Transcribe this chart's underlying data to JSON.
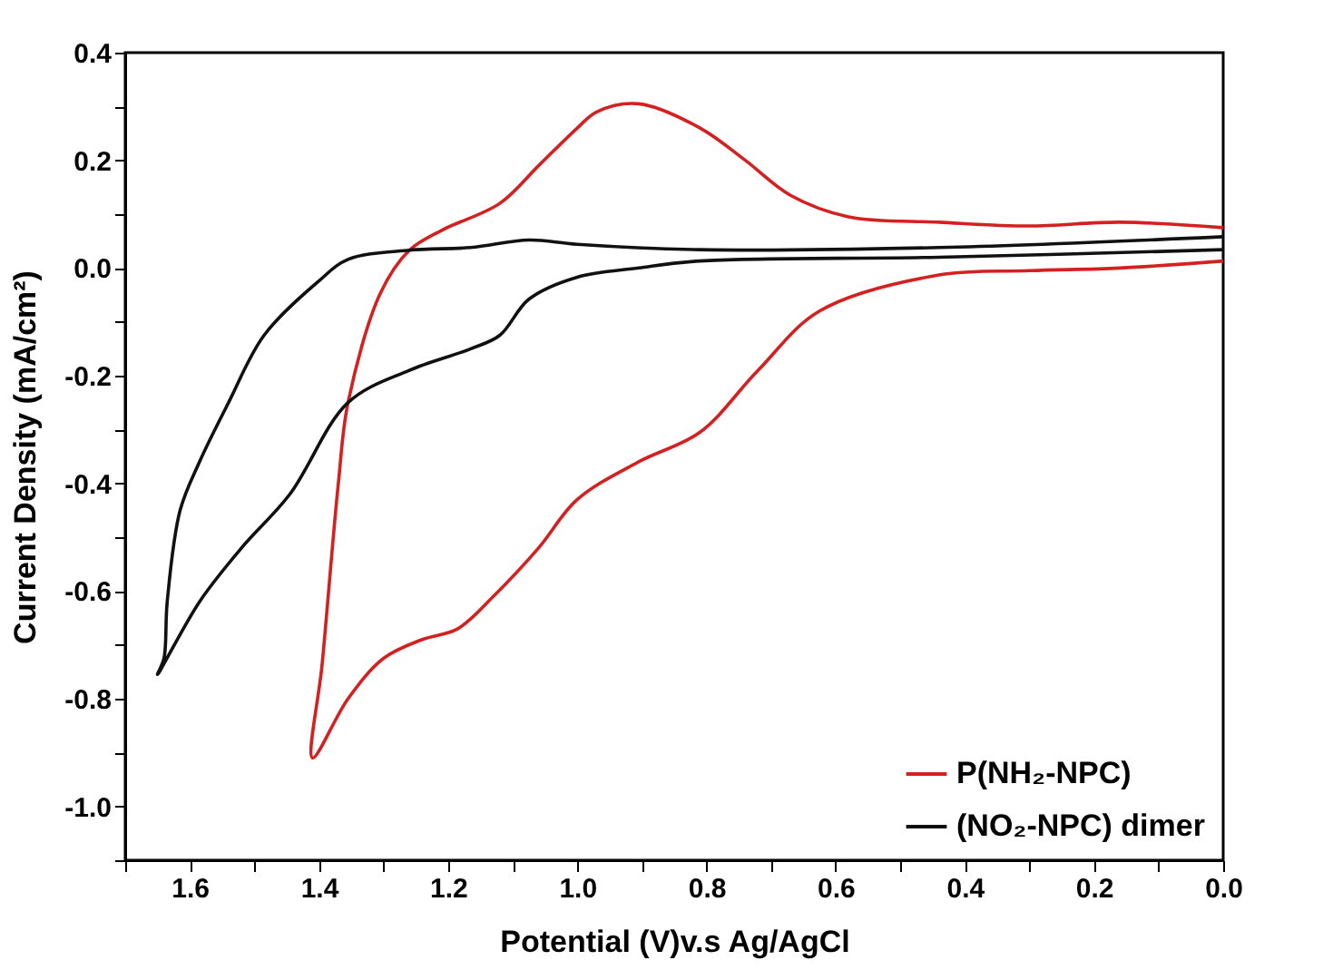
{
  "chart_data": {
    "type": "line",
    "xlabel": "Potential (V)v.s Ag/AgCl",
    "ylabel": "Current Density (mA/cm²)",
    "xlim": [
      1.7,
      0.0
    ],
    "ylim": [
      -1.1,
      0.4
    ],
    "xticks": [
      {
        "value": 1.7,
        "label": null
      },
      1.6,
      {
        "value": 1.5,
        "label": null
      },
      1.4,
      {
        "value": 1.3,
        "label": null
      },
      1.2,
      {
        "value": 1.1,
        "label": null
      },
      {
        "value": 1.0,
        "label": "1.0"
      },
      {
        "value": 0.9,
        "label": null
      },
      0.8,
      {
        "value": 0.7,
        "label": null
      },
      0.6,
      {
        "value": 0.5,
        "label": null
      },
      0.4,
      {
        "value": 0.3,
        "label": null
      },
      0.2,
      {
        "value": 0.1,
        "label": null
      },
      {
        "value": 0,
        "label": "0.0"
      }
    ],
    "yticks": [
      0.4,
      {
        "value": 0.3,
        "label": null
      },
      0.2,
      {
        "value": 0.1,
        "label": null
      },
      {
        "value": 0,
        "label": "0.0"
      },
      {
        "value": -0.1,
        "label": null
      },
      -0.2,
      {
        "value": -0.3,
        "label": null
      },
      -0.4,
      {
        "value": -0.5,
        "label": null
      },
      -0.6,
      {
        "value": -0.7,
        "label": null
      },
      -0.8,
      {
        "value": -0.9,
        "label": null
      },
      {
        "value": -1.0,
        "label": "-1.0"
      },
      {
        "value": -1.1,
        "label": null
      }
    ],
    "grid": false,
    "legend": "bottom right",
    "line_style": "solid",
    "marker": "none",
    "series": [
      {
        "name": "P(NH₂-NPC)",
        "color": "#d42020",
        "x": [
          0.0,
          0.16,
          0.3,
          0.44,
          0.58,
          0.67,
          0.74,
          0.81,
          0.905,
          0.97,
          1.0,
          1.06,
          1.12,
          1.21,
          1.26,
          1.305,
          1.355,
          1.37,
          1.395,
          1.41,
          1.355,
          1.3,
          1.24,
          1.185,
          1.13,
          1.06,
          1.0,
          0.905,
          0.81,
          0.72,
          0.625,
          0.44,
          0.3,
          0.16,
          0.0
        ],
        "values": [
          0.075,
          0.085,
          0.078,
          0.085,
          0.095,
          0.135,
          0.2,
          0.26,
          0.305,
          0.29,
          0.26,
          0.19,
          0.12,
          0.07,
          0.033,
          -0.047,
          -0.25,
          -0.4,
          -0.735,
          -0.91,
          -0.8,
          -0.725,
          -0.69,
          -0.67,
          -0.61,
          -0.52,
          -0.43,
          -0.36,
          -0.305,
          -0.19,
          -0.08,
          -0.013,
          -0.005,
          0.0,
          0.013
        ]
      },
      {
        "name": "(NO₂-NPC) dimer",
        "color": "#111111",
        "x": [
          0.0,
          0.44,
          0.81,
          1.0,
          1.075,
          1.165,
          1.26,
          1.355,
          1.4,
          1.485,
          1.54,
          1.585,
          1.615,
          1.635,
          1.64,
          1.65,
          1.585,
          1.52,
          1.445,
          1.355,
          1.26,
          1.165,
          1.12,
          1.075,
          1.0,
          0.905,
          0.81,
          0.44,
          0.0
        ],
        "values": [
          0.058,
          0.038,
          0.034,
          0.044,
          0.052,
          0.038,
          0.033,
          0.016,
          -0.024,
          -0.125,
          -0.25,
          -0.36,
          -0.45,
          -0.62,
          -0.725,
          -0.755,
          -0.62,
          -0.52,
          -0.42,
          -0.25,
          -0.19,
          -0.15,
          -0.125,
          -0.058,
          -0.017,
          0.0,
          0.013,
          0.02,
          0.034
        ]
      }
    ]
  }
}
